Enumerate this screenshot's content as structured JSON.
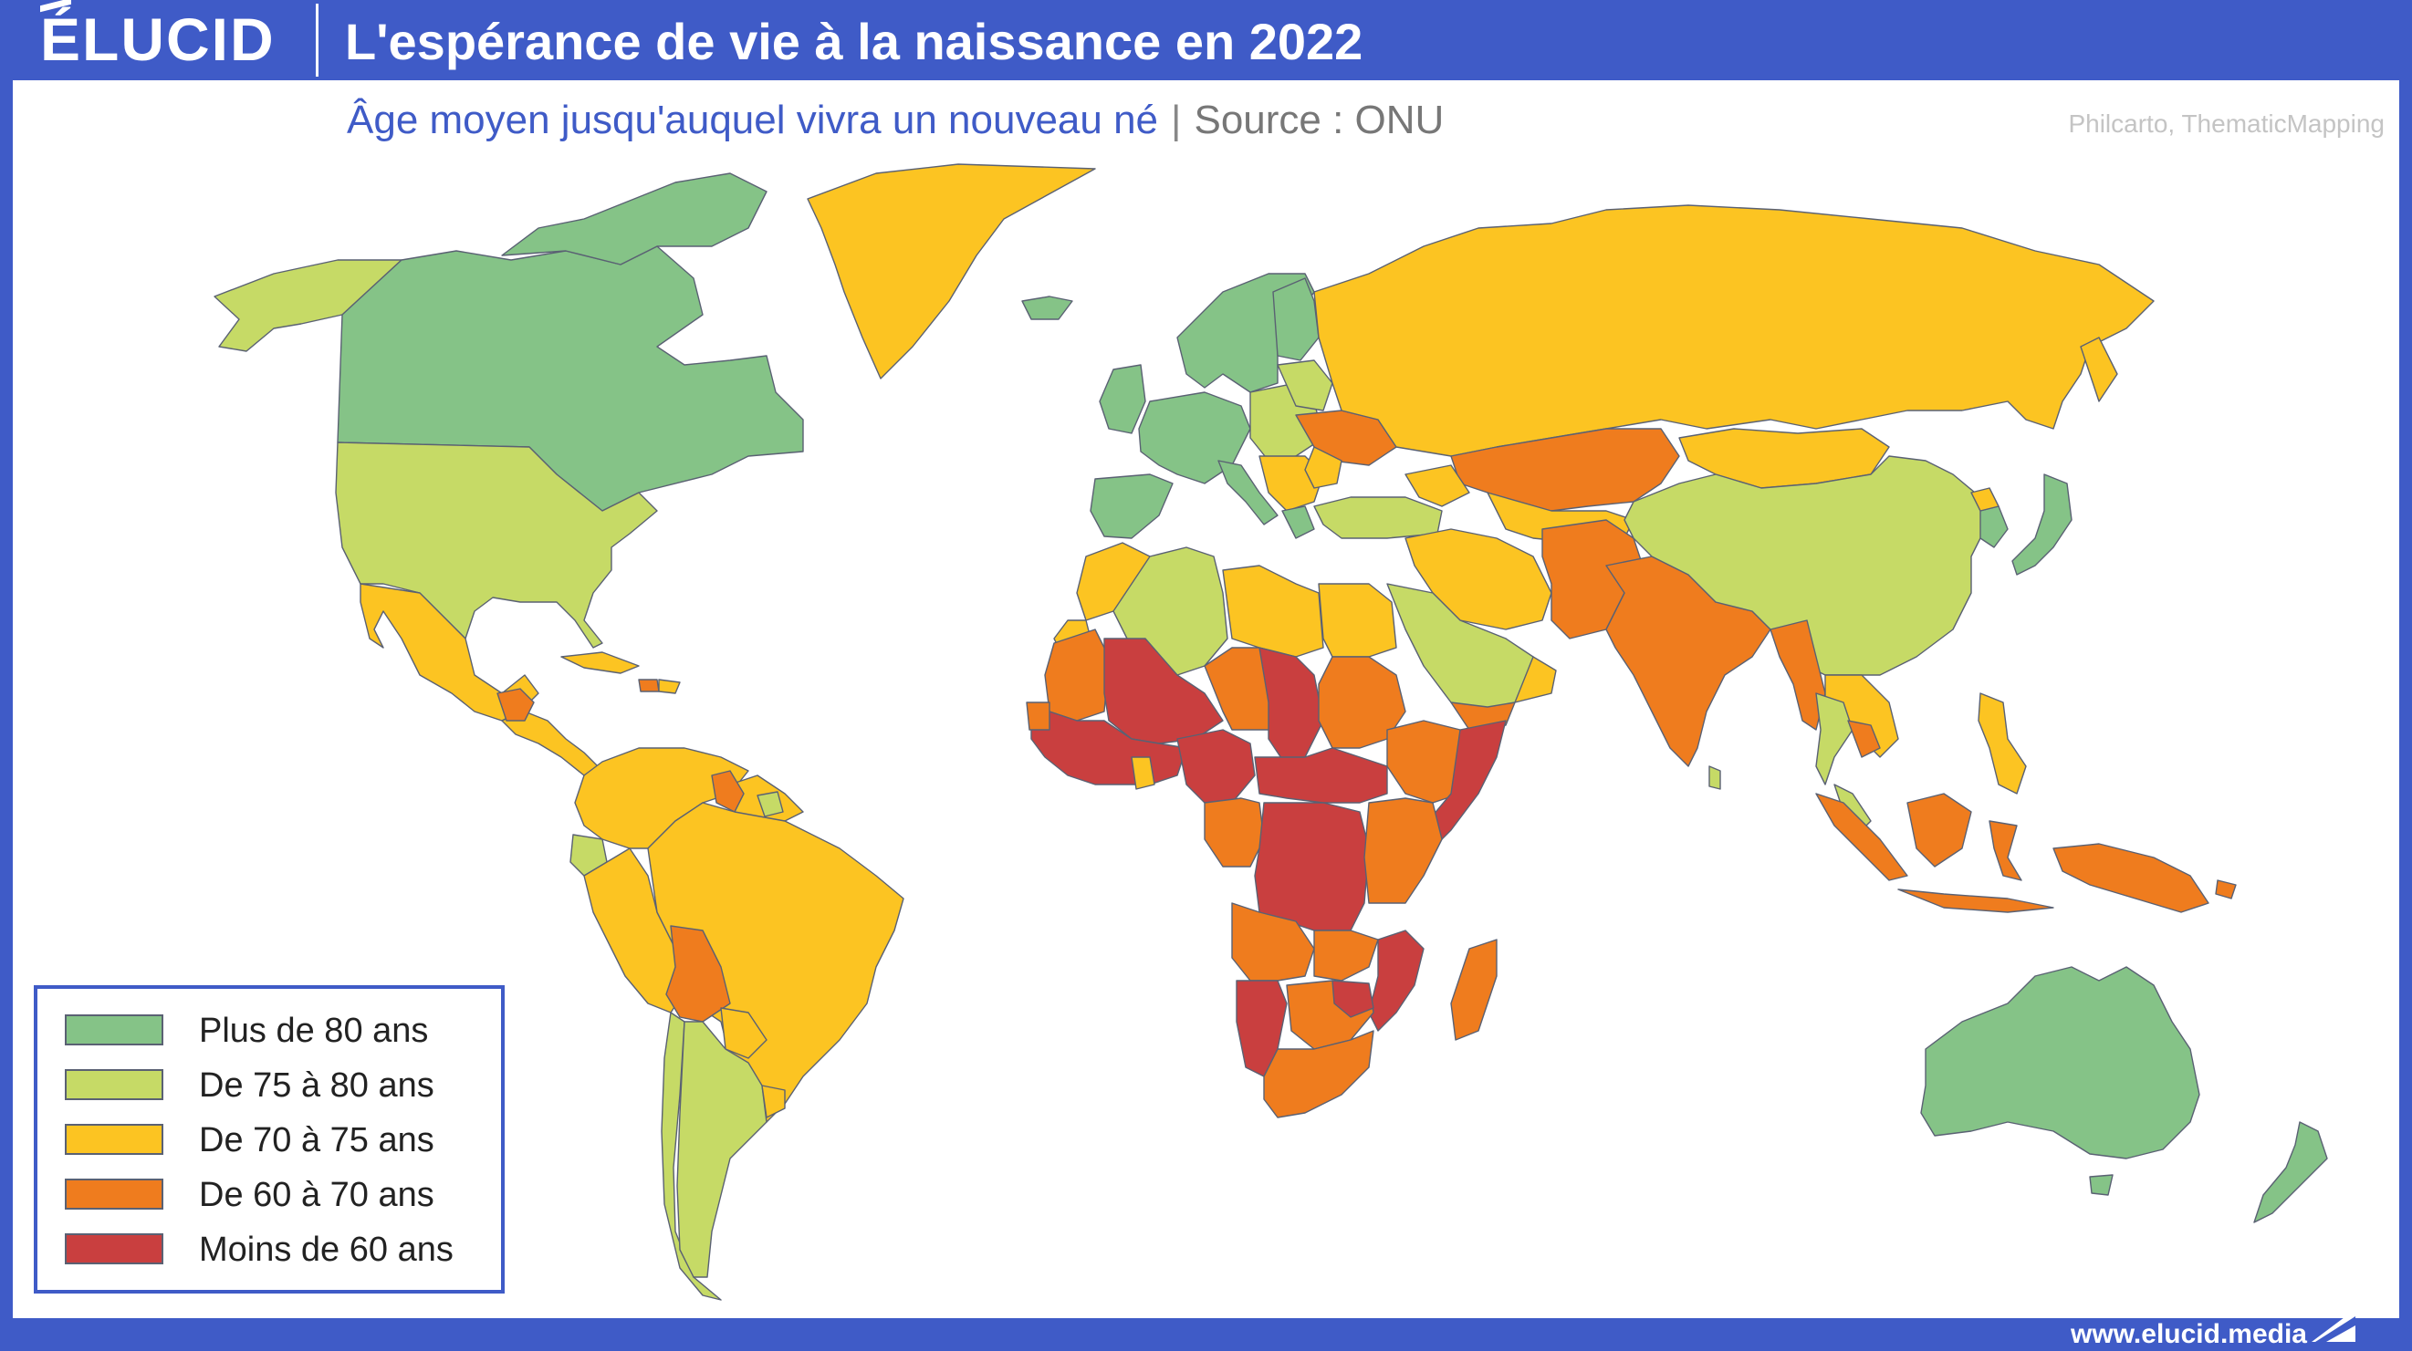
{
  "header": {
    "brand": "ÉLUCID",
    "title": "L'espérance de vie à la naissance en 2022"
  },
  "subtitle": {
    "text": "Âge moyen jusqu'auquel vivra un nouveau né",
    "separator": "|",
    "source": "Source : ONU"
  },
  "credit": "Philcarto, ThematicMapping",
  "legend": {
    "items": [
      {
        "label": "Plus de 80 ans",
        "color": "#85c387"
      },
      {
        "label": "De 75 à 80 ans",
        "color": "#c6da66"
      },
      {
        "label": "De 70 à 75 ans",
        "color": "#fcc422"
      },
      {
        "label": "De 60 à 70 ans",
        "color": "#ef7c1e"
      },
      {
        "label": "Moins de 60 ans",
        "color": "#c93f3f"
      }
    ]
  },
  "colors": {
    "frame": "#3f5bc7",
    "over80": "#85c387",
    "from75to80": "#c6da66",
    "from70to75": "#fcc422",
    "from60to70": "#ef7c1e",
    "under60": "#c93f3f",
    "border": "#5a6173"
  },
  "footer": {
    "website": "www.elucid.media"
  }
}
